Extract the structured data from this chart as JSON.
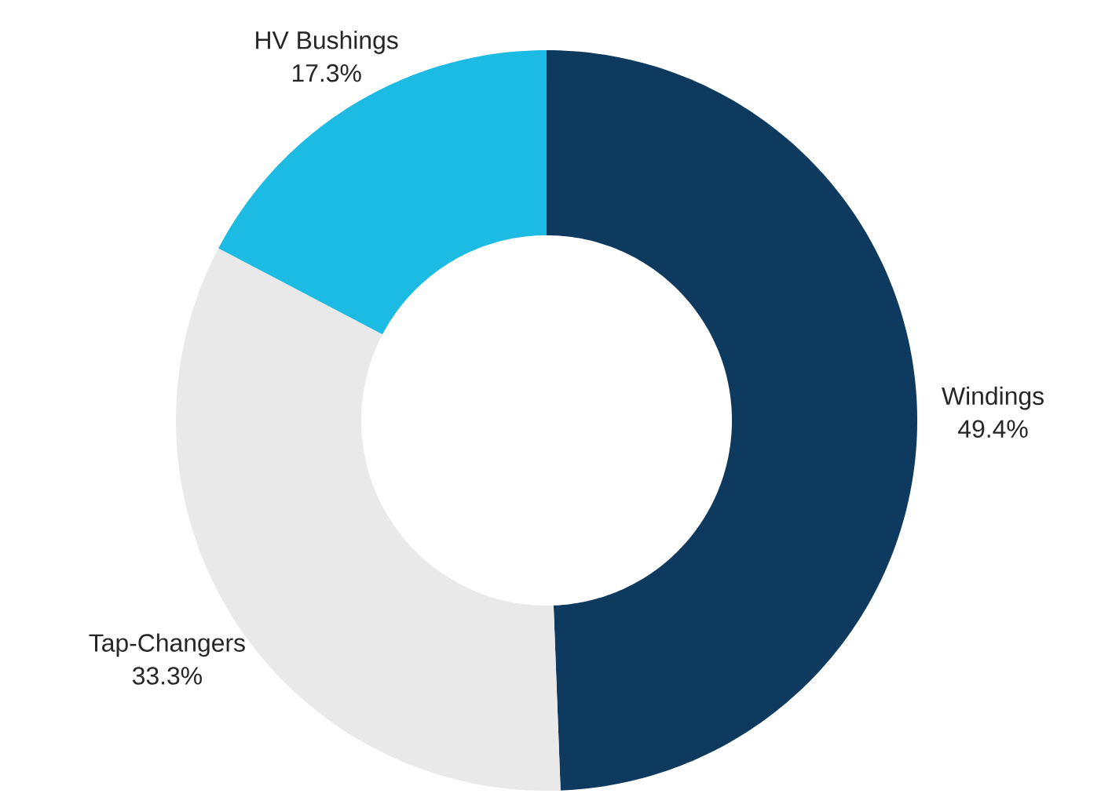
{
  "chart_data": {
    "type": "donut",
    "categories": [
      "Windings",
      "Tap-Changers",
      "HV Bushings"
    ],
    "values": [
      49.4,
      33.3,
      17.3
    ],
    "value_labels": [
      "49.4%",
      "33.3%",
      "17.3%"
    ],
    "colors": [
      "#0e3a5f",
      "#e9e9e9",
      "#1cbbe4"
    ]
  }
}
